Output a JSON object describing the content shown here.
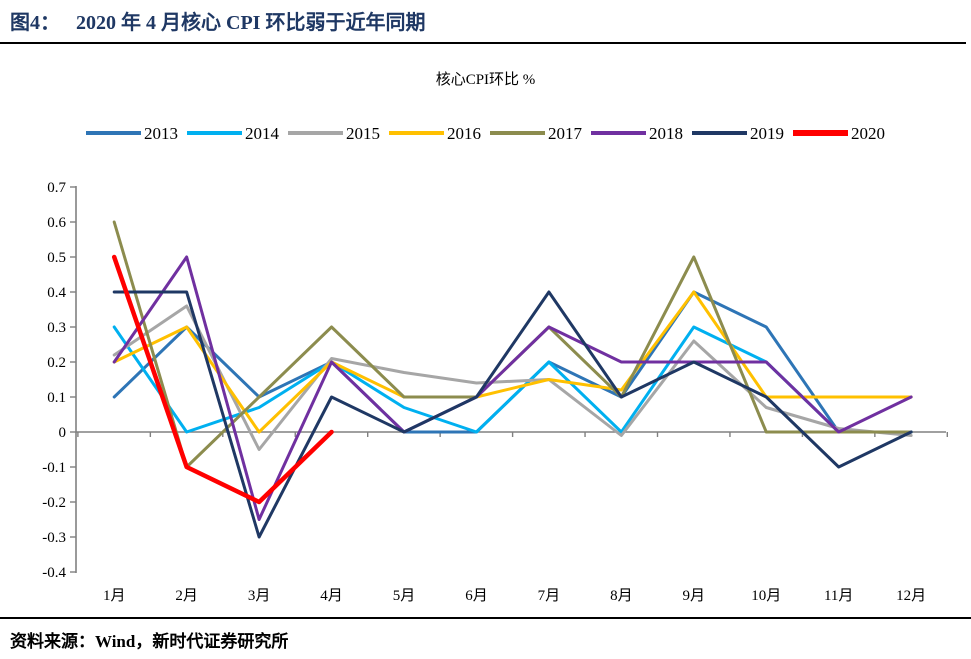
{
  "figure": {
    "label": "图4：",
    "title": "2020 年 4 月核心 CPI 环比弱于近年同期"
  },
  "chart_data": {
    "type": "line",
    "title": "核心CPI环比 %",
    "categories": [
      "1月",
      "2月",
      "3月",
      "4月",
      "5月",
      "6月",
      "7月",
      "8月",
      "9月",
      "10月",
      "11月",
      "12月"
    ],
    "series": [
      {
        "name": "2013",
        "color": "#2E75B6",
        "values": [
          0.1,
          0.3,
          0.1,
          0.2,
          0.0,
          0.0,
          0.2,
          0.1,
          0.4,
          0.3,
          0.0,
          0.0
        ]
      },
      {
        "name": "2014",
        "color": "#00B0F0",
        "values": [
          0.3,
          0.0,
          0.07,
          0.2,
          0.07,
          0.0,
          0.2,
          0.0,
          0.3,
          0.2,
          0.0,
          0.0
        ]
      },
      {
        "name": "2015",
        "color": "#A6A6A6",
        "values": [
          0.22,
          0.36,
          -0.05,
          0.21,
          0.17,
          0.14,
          0.15,
          -0.01,
          0.26,
          0.07,
          0.01,
          -0.01
        ]
      },
      {
        "name": "2016",
        "color": "#FFC000",
        "values": [
          0.2,
          0.3,
          0.0,
          0.2,
          0.1,
          0.1,
          0.15,
          0.12,
          0.4,
          0.1,
          0.1,
          0.1
        ]
      },
      {
        "name": "2017",
        "color": "#8C8C4E",
        "values": [
          0.6,
          -0.1,
          0.1,
          0.3,
          0.1,
          0.1,
          0.3,
          0.1,
          0.5,
          0.0,
          0.0,
          0.0
        ]
      },
      {
        "name": "2018",
        "color": "#7030A0",
        "values": [
          0.2,
          0.5,
          -0.25,
          0.2,
          0.0,
          0.1,
          0.3,
          0.2,
          0.2,
          0.2,
          0.0,
          0.1
        ]
      },
      {
        "name": "2019",
        "color": "#1F3864",
        "values": [
          0.4,
          0.4,
          -0.3,
          0.1,
          0.0,
          0.1,
          0.4,
          0.1,
          0.2,
          0.1,
          -0.1,
          0.0
        ]
      },
      {
        "name": "2020",
        "color": "#FF0000",
        "values": [
          0.5,
          -0.1,
          -0.2,
          0.0
        ]
      }
    ],
    "ylim": [
      -0.4,
      0.7
    ],
    "ytick_labels": [
      "0.7",
      "0.6",
      "0.5",
      "0.4",
      "0.3",
      "0.2",
      "0.1",
      "0",
      "-0.1",
      "-0.2",
      "-0.3",
      "-0.4"
    ],
    "ytick_values": [
      0.7,
      0.6,
      0.5,
      0.4,
      0.3,
      0.2,
      0.1,
      0.0,
      -0.1,
      -0.2,
      -0.3,
      -0.4
    ],
    "grid": "zero-line-only",
    "legend_position": "top",
    "axis_color": "#808080"
  },
  "footer": {
    "source_text": "资料来源：Wind，新时代证券研究所"
  }
}
